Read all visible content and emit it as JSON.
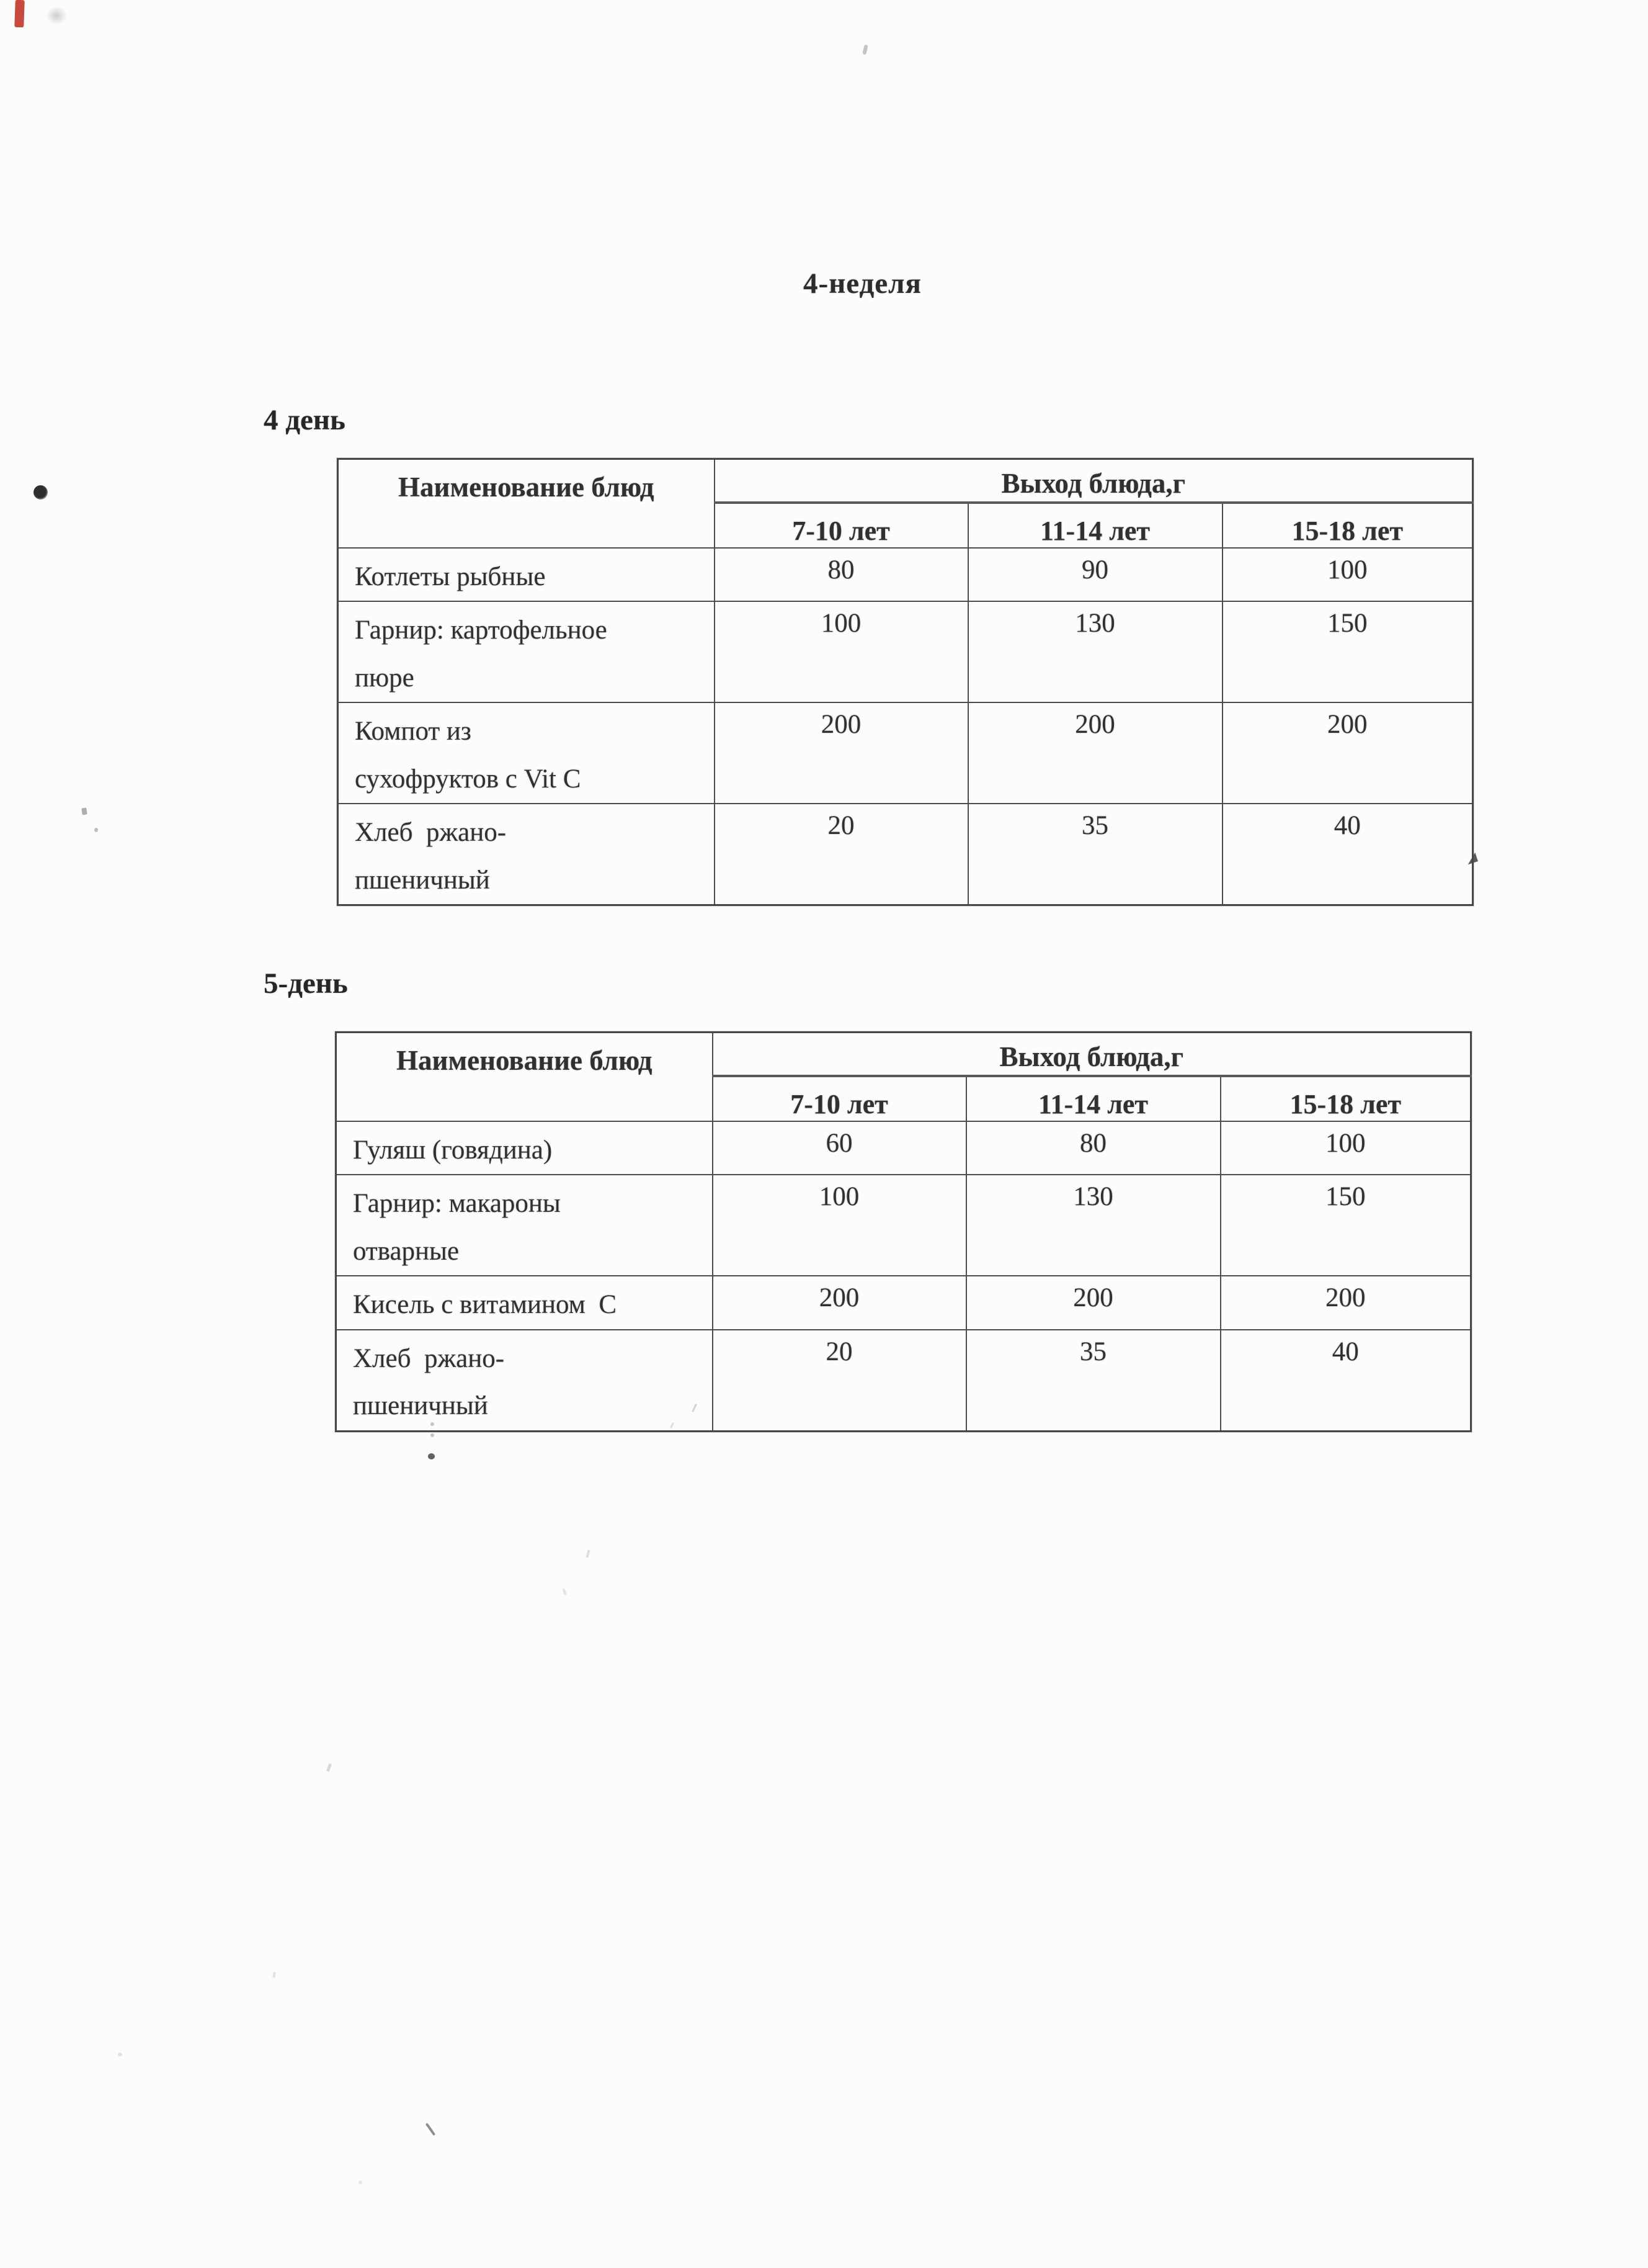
{
  "page": {
    "title": "4-неделя"
  },
  "colors": {
    "paper": "#fcfcfa",
    "ink": "#303030",
    "border": "#4c4c4c",
    "artifact_red": "#c23b2e"
  },
  "day4": {
    "heading": "4 день",
    "table": {
      "col1_header": "Наименование блюд",
      "group_header": "Выход блюда,г",
      "age_headers": [
        "7-10 лет",
        "11-14 лет",
        "15-18 лет"
      ],
      "rows": [
        {
          "dish": "Котлеты рыбные",
          "v1": "80",
          "v2": "90",
          "v3": "100"
        },
        {
          "dish": "Гарнир: картофельное\nпюре",
          "v1": "100",
          "v2": "130",
          "v3": "150"
        },
        {
          "dish": "Компот из\nсухофруктов с Vit C",
          "v1": "200",
          "v2": "200",
          "v3": "200"
        },
        {
          "dish": "Хлеб  ржано-\nпшеничный",
          "v1": "20",
          "v2": "35",
          "v3": "40"
        }
      ]
    }
  },
  "day5": {
    "heading": "5-день",
    "table": {
      "col1_header": "Наименование блюд",
      "group_header": "Выход блюда,г",
      "age_headers": [
        "7-10 лет",
        "11-14 лет",
        "15-18 лет"
      ],
      "rows": [
        {
          "dish": "Гуляш (говядина)",
          "v1": "60",
          "v2": "80",
          "v3": "100"
        },
        {
          "dish": "Гарнир: макароны\nотварные",
          "v1": "100",
          "v2": "130",
          "v3": "150"
        },
        {
          "dish": "Кисель с витамином  С",
          "v1": "200",
          "v2": "200",
          "v3": "200"
        },
        {
          "dish": "Хлеб  ржано-\nпшеничный",
          "v1": "20",
          "v2": "35",
          "v3": "40"
        }
      ]
    }
  }
}
